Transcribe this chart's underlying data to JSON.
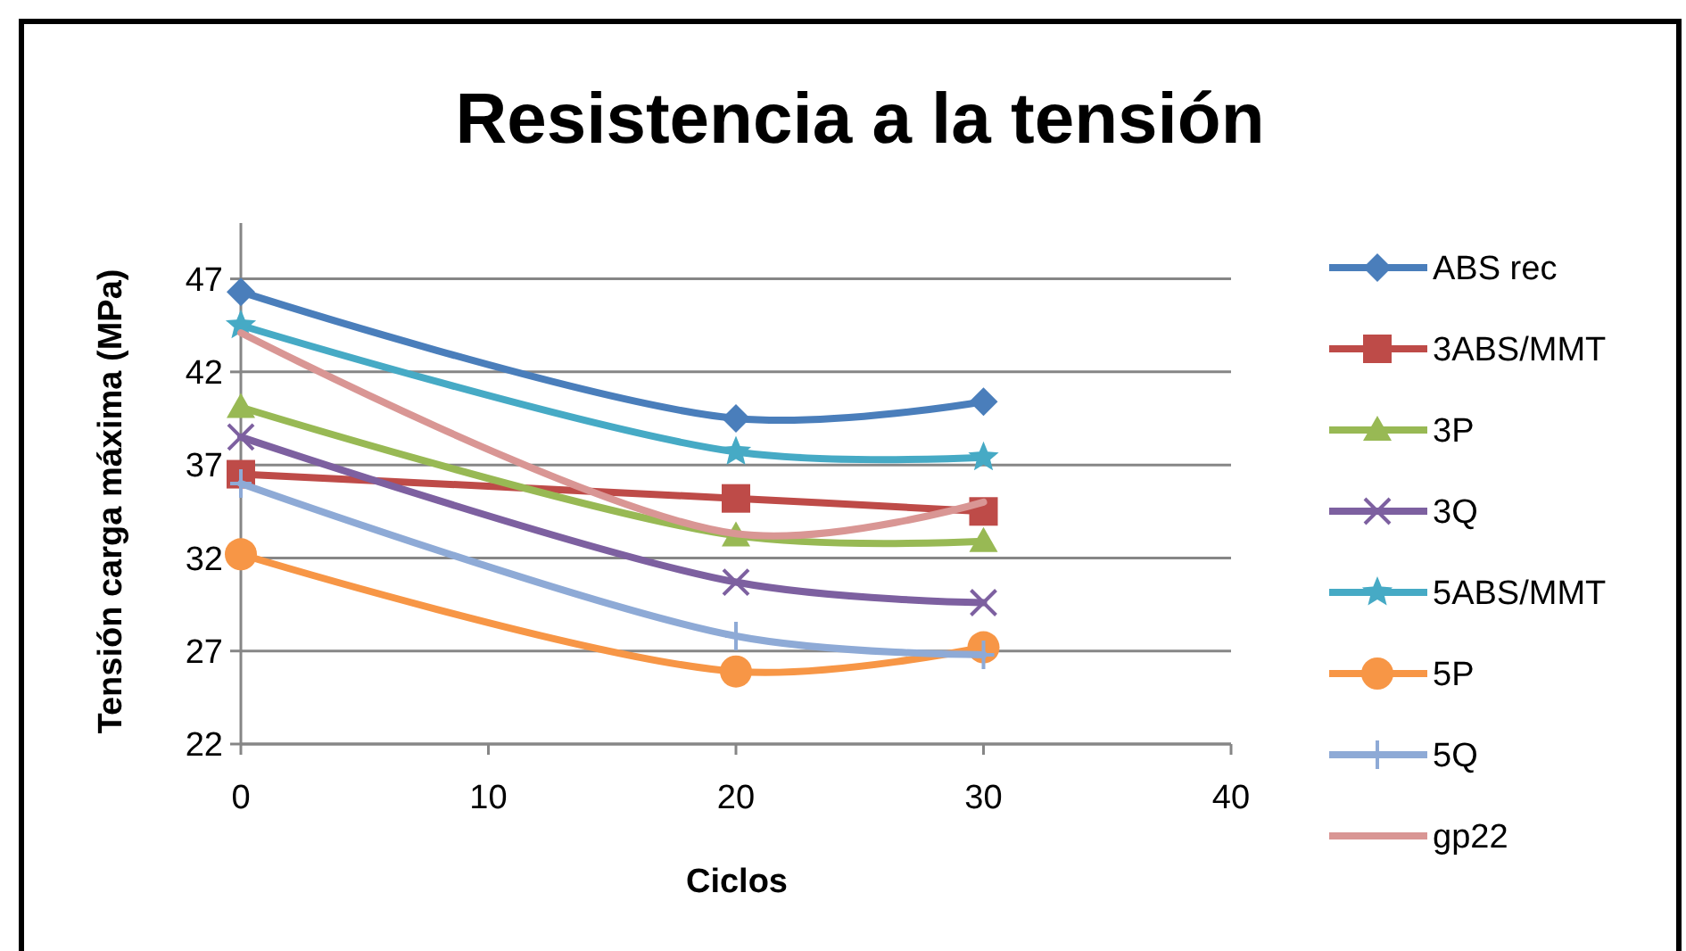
{
  "chart_data": {
    "type": "line",
    "title": "Resistencia a la tensión",
    "xlabel": "Ciclos",
    "ylabel": "Tensión carga máxima (MPa)",
    "x": [
      0,
      20,
      30
    ],
    "xlim": [
      0,
      40
    ],
    "xticks": [
      0,
      10,
      20,
      30,
      40
    ],
    "ylim": [
      22,
      50
    ],
    "yticks": [
      22,
      27,
      32,
      37,
      42,
      47
    ],
    "grid": "y",
    "legend": "right",
    "series": [
      {
        "name": "ABS rec",
        "color": "#4a7ebb",
        "marker": "diamond",
        "values": [
          46.3,
          39.5,
          40.4
        ]
      },
      {
        "name": "3ABS/MMT",
        "color": "#be4b48",
        "marker": "square",
        "values": [
          36.5,
          35.2,
          34.5
        ]
      },
      {
        "name": "3P",
        "color": "#98b954",
        "marker": "triangle",
        "values": [
          40.1,
          33.2,
          32.9
        ]
      },
      {
        "name": "3Q",
        "color": "#7d60a0",
        "marker": "cross",
        "values": [
          38.5,
          30.7,
          29.6
        ]
      },
      {
        "name": "5ABS/MMT",
        "color": "#46aac5",
        "marker": "star",
        "values": [
          44.5,
          37.7,
          37.4
        ]
      },
      {
        "name": "5P",
        "color": "#f79646",
        "marker": "circle",
        "values": [
          32.2,
          25.9,
          27.2
        ]
      },
      {
        "name": "5Q",
        "color": "#8eaad6",
        "marker": "plus",
        "values": [
          36.0,
          27.8,
          26.8
        ]
      },
      {
        "name": "gp22",
        "color": "#d99694",
        "marker": "none",
        "values": [
          44.1,
          33.3,
          35.0
        ]
      }
    ]
  }
}
